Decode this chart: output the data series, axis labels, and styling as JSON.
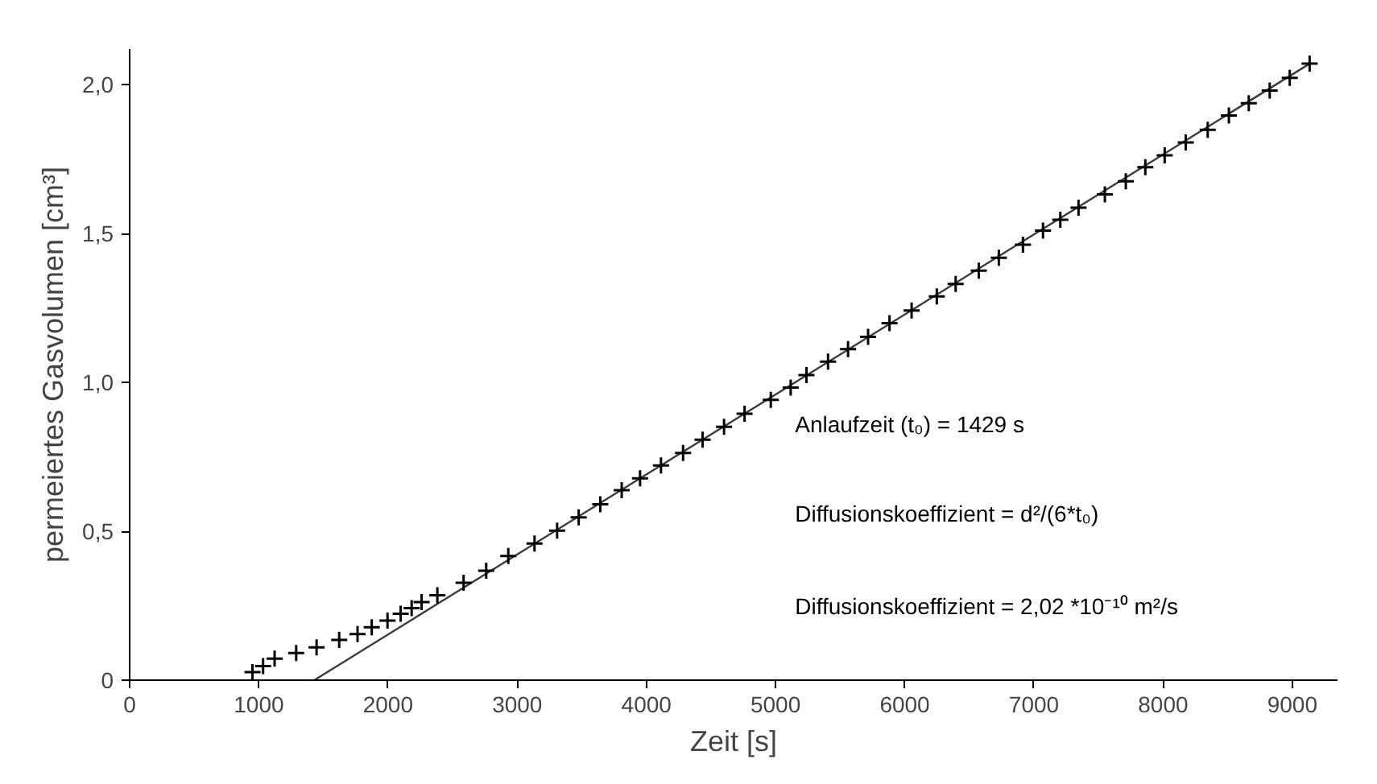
{
  "chart_data": {
    "type": "scatter",
    "xlabel": "Zeit [s]",
    "ylabel": "permeiertes Gasvolumen [cm³]",
    "xlim": [
      0,
      9350
    ],
    "ylim": [
      0,
      2.12
    ],
    "xticks": [
      0,
      1000,
      2000,
      3000,
      4000,
      5000,
      6000,
      7000,
      8000,
      9000
    ],
    "yticks": [
      0,
      {
        "value": 0.5,
        "label": "0,5"
      },
      {
        "value": 1.0,
        "label": "1,0"
      },
      {
        "value": 1.5,
        "label": "1,5"
      },
      {
        "value": 2.0,
        "label": "2,0"
      }
    ],
    "grid": false,
    "series": [
      {
        "marker": "cross",
        "color": "#000000",
        "x": [
          951,
          1033,
          1122,
          1289,
          1447,
          1622,
          1764,
          1874,
          1996,
          2098,
          2183,
          2260,
          2382,
          2585,
          2760,
          2931,
          3134,
          3309,
          3476,
          3643,
          3809,
          3951,
          4113,
          4284,
          4435,
          4601,
          4760,
          4963,
          5117,
          5239,
          5406,
          5561,
          5716,
          5882,
          6053,
          6248,
          6394,
          6573,
          6728,
          6915,
          7070,
          7204,
          7345,
          7549,
          7711,
          7862,
          8012,
          8175,
          8345,
          8509,
          8663,
          8825,
          8980,
          9134
        ],
        "values": [
          0.027,
          0.047,
          0.072,
          0.091,
          0.11,
          0.135,
          0.155,
          0.178,
          0.2,
          0.223,
          0.242,
          0.262,
          0.285,
          0.327,
          0.368,
          0.417,
          0.459,
          0.502,
          0.547,
          0.591,
          0.638,
          0.678,
          0.721,
          0.763,
          0.808,
          0.851,
          0.895,
          0.942,
          0.983,
          1.025,
          1.07,
          1.112,
          1.153,
          1.199,
          1.242,
          1.289,
          1.331,
          1.376,
          1.419,
          1.463,
          1.51,
          1.547,
          1.587,
          1.632,
          1.676,
          1.723,
          1.763,
          1.806,
          1.849,
          1.897,
          1.938,
          1.981,
          2.023,
          2.071
        ]
      },
      {
        "type": "line",
        "line_style": "solid",
        "color": "#3a3a3a",
        "x": [
          1429,
          9134
        ],
        "values": [
          0,
          2.071
        ]
      }
    ],
    "annotations": [
      "Anlaufzeit (t₀) = 1429 s",
      "Diffusionskoeffizient = d²/(6*t₀)",
      "Diffusionskoeffizient = 2,02 *10⁻¹⁰ m²/s"
    ]
  }
}
